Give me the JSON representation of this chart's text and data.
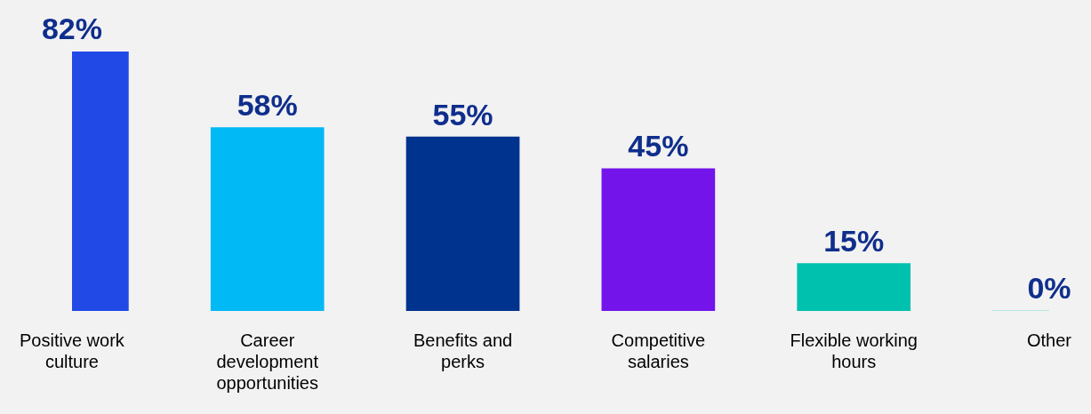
{
  "chart_data": {
    "type": "bar",
    "categories": [
      "Positive work culture",
      "Career development opportunities",
      "Benefits and perks",
      "Competitive salaries",
      "Flexible working hours",
      "Other"
    ],
    "values": [
      82,
      58,
      55,
      45,
      15,
      0
    ],
    "colors": [
      "#2149e6",
      "#00b9f5",
      "#00338d",
      "#7214ea",
      "#00c1ae",
      "#00c1ae"
    ],
    "value_labels": [
      "82%",
      "58%",
      "55%",
      "45%",
      "15%",
      "0%"
    ],
    "grid": false,
    "legend": false
  }
}
